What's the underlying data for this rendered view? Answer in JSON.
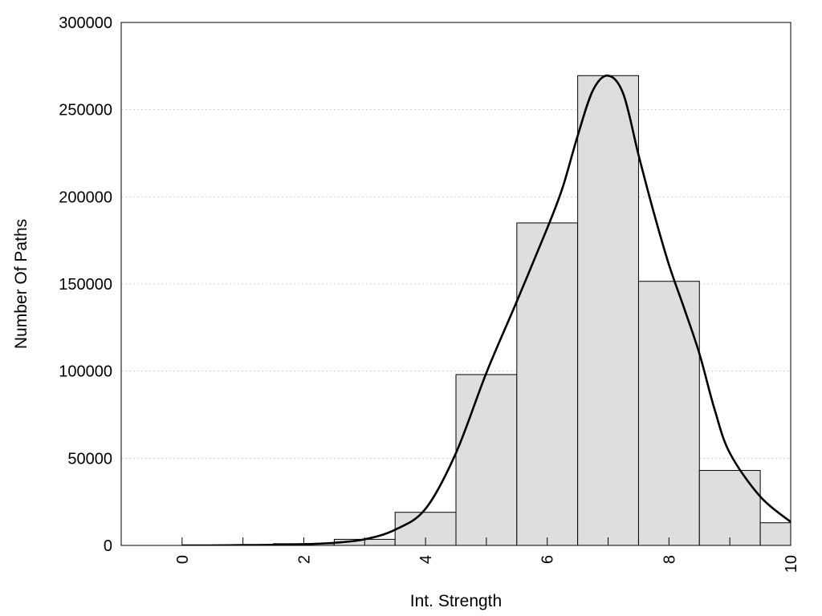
{
  "chart_data": {
    "type": "bar",
    "title": "",
    "xlabel": "Int. Strength",
    "ylabel": "Number Of Paths",
    "xlim": [
      -1,
      10
    ],
    "ylim": [
      0,
      300000
    ],
    "grid": true,
    "x_ticks": [
      "0",
      "2",
      "4",
      "6",
      "8",
      "10"
    ],
    "y_ticks": [
      "0",
      "50000",
      "100000",
      "150000",
      "200000",
      "250000",
      "300000"
    ],
    "bins": [
      {
        "x": 0,
        "value": 0
      },
      {
        "x": 1,
        "value": 300
      },
      {
        "x": 2,
        "value": 1000
      },
      {
        "x": 3,
        "value": 3500
      },
      {
        "x": 4,
        "value": 19000
      },
      {
        "x": 5,
        "value": 98000
      },
      {
        "x": 6,
        "value": 185000
      },
      {
        "x": 7,
        "value": 269500
      },
      {
        "x": 8,
        "value": 151500
      },
      {
        "x": 9,
        "value": 43000
      },
      {
        "x": 10,
        "value": 13000
      }
    ],
    "curve": {
      "x": [
        0,
        0.5,
        1,
        1.5,
        2,
        2.5,
        3,
        3.5,
        4,
        4.5,
        5,
        5.5,
        6,
        6.25,
        6.5,
        6.75,
        7,
        7.25,
        7.5,
        7.75,
        8,
        8.25,
        8.5,
        8.75,
        9,
        9.5,
        10
      ],
      "y": [
        0,
        0,
        200,
        300,
        700,
        1500,
        3500,
        9000,
        21000,
        53000,
        99000,
        140000,
        182000,
        205000,
        235000,
        261000,
        269500,
        259000,
        224000,
        191000,
        161000,
        136000,
        110000,
        78000,
        53000,
        28000,
        13500
      ]
    },
    "colors": {
      "bar_fill": "#dedede",
      "bar_stroke": "#000000",
      "curve": "#000000",
      "grid": "#d0d0d0"
    }
  }
}
